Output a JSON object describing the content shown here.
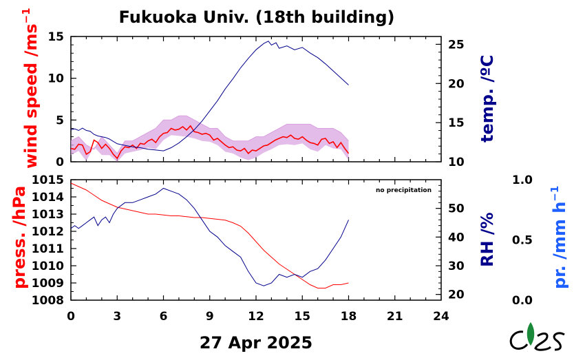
{
  "title": "Fukuoka Univ. (18th building)",
  "date_label": "27 Apr 2025",
  "note": "no precipitation",
  "colors": {
    "wind": "#ff0000",
    "wind_gust": "#d9a0e0",
    "temp": "#00008b",
    "press": "#ff0000",
    "rh": "#00008b",
    "precip": "#1e5fff",
    "logo": "#1a8a3a"
  },
  "chart_data": [
    {
      "type": "line",
      "panel": "top",
      "x_ticks": [
        0,
        3,
        6,
        9,
        12,
        15,
        18,
        21,
        24
      ],
      "xlim": [
        0,
        24
      ],
      "left_axis": {
        "label": "wind speed /ms",
        "unit_sup": "−1",
        "ylim": [
          0,
          15
        ],
        "ticks": [
          "0",
          "5",
          "10",
          "15"
        ]
      },
      "right_axis": {
        "label": "temp. /ºC",
        "ylim": [
          10,
          26
        ],
        "ticks": [
          "10",
          "15",
          "20",
          "25"
        ]
      },
      "series": [
        {
          "axis": "left",
          "style": "gust",
          "x": [
            0,
            0.5,
            1,
            1.5,
            2,
            2.5,
            3,
            3.5,
            4,
            4.5,
            5,
            5.5,
            6,
            6.5,
            7,
            7.5,
            8,
            8.5,
            9,
            9.5,
            10,
            10.5,
            11,
            11.5,
            12,
            12.5,
            13,
            13.5,
            14,
            14.5,
            15,
            15.5,
            16,
            16.5,
            17,
            17.5,
            18
          ],
          "y": [
            2.5,
            3,
            2,
            1.5,
            3,
            2,
            1,
            2.5,
            2.5,
            3,
            3.5,
            4,
            5,
            5,
            5.5,
            5.5,
            5,
            4.5,
            4,
            4,
            3,
            2.5,
            2.5,
            2.5,
            3,
            3,
            3.5,
            4,
            4.5,
            4.5,
            4.5,
            4.5,
            4,
            4,
            4,
            3.5,
            2.5
          ]
        },
        {
          "axis": "left",
          "style": "mean",
          "x": [
            0,
            0.25,
            0.5,
            0.75,
            1,
            1.25,
            1.5,
            1.75,
            2,
            2.25,
            2.5,
            2.75,
            3,
            3.25,
            3.5,
            3.75,
            4,
            4.25,
            4.5,
            4.75,
            5,
            5.25,
            5.5,
            5.75,
            6,
            6.25,
            6.5,
            6.75,
            7,
            7.25,
            7.5,
            7.75,
            8,
            8.25,
            8.5,
            8.75,
            9,
            9.25,
            9.5,
            9.75,
            10,
            10.25,
            10.5,
            10.75,
            11,
            11.25,
            11.5,
            11.75,
            12,
            12.25,
            12.5,
            12.75,
            13,
            13.25,
            13.5,
            13.75,
            14,
            14.25,
            14.5,
            14.75,
            15,
            15.25,
            15.5,
            15.75,
            16,
            16.25,
            16.5,
            16.75,
            17,
            17.25,
            17.5,
            17.75,
            18
          ],
          "y": [
            1.6,
            1.5,
            2.1,
            2,
            0.9,
            1.2,
            2.6,
            2.3,
            1.6,
            2.1,
            1.6,
            0.9,
            0.4,
            1.3,
            1.8,
            1.7,
            2.0,
            1.6,
            2.2,
            2.1,
            2.5,
            2.7,
            2.3,
            3.0,
            3.4,
            3.5,
            4.0,
            3.8,
            3.9,
            4.2,
            3.8,
            4.3,
            3.6,
            3.5,
            3.3,
            3.4,
            3.2,
            2.6,
            2.8,
            2.4,
            2.0,
            1.7,
            1.8,
            1.4,
            1.3,
            1.6,
            1.0,
            1.4,
            1.3,
            1.6,
            1.9,
            2.0,
            2.3,
            2.6,
            2.8,
            3.0,
            2.9,
            3.2,
            2.8,
            2.7,
            3.0,
            2.6,
            2.3,
            2.2,
            2.0,
            2.7,
            2.8,
            2.2,
            2.4,
            1.7,
            2.3,
            1.6,
            1.0
          ]
        },
        {
          "axis": "right",
          "style": "temp",
          "x": [
            0,
            0.25,
            0.5,
            0.75,
            1,
            1.25,
            1.5,
            1.75,
            2,
            2.25,
            2.5,
            2.75,
            3,
            3.25,
            3.5,
            3.75,
            4,
            4.5,
            5,
            5.5,
            6,
            6.5,
            7,
            7.5,
            8,
            8.5,
            9,
            9.5,
            10,
            10.5,
            11,
            11.5,
            12,
            12.5,
            12.8,
            13,
            13.3,
            13.5,
            14,
            14.5,
            15,
            15.5,
            16,
            16.5,
            17,
            17.5,
            18
          ],
          "y": [
            14.1,
            14.2,
            14.0,
            14.3,
            14.0,
            13.9,
            13.5,
            13.3,
            13.2,
            13.1,
            12.9,
            12.6,
            12.3,
            12.2,
            12.1,
            12.0,
            11.9,
            11.8,
            11.6,
            11.5,
            11.4,
            11.8,
            12.4,
            13.2,
            14.1,
            15.2,
            16.5,
            17.8,
            19.3,
            20.6,
            22.0,
            23.2,
            24.3,
            25.1,
            25.4,
            24.9,
            25.2,
            24.5,
            24.8,
            24.3,
            24.6,
            23.9,
            23.3,
            22.5,
            21.6,
            20.7,
            19.8
          ]
        }
      ]
    },
    {
      "type": "line",
      "panel": "bottom",
      "x_ticks": [
        "0",
        "3",
        "6",
        "9",
        "12",
        "15",
        "18",
        "21",
        "24"
      ],
      "xlim": [
        0,
        24
      ],
      "left_axis": {
        "label": "press. /hPa",
        "ylim": [
          1008,
          1015
        ],
        "ticks": [
          "1008",
          "1009",
          "1010",
          "1011",
          "1012",
          "1013",
          "1014",
          "1015"
        ]
      },
      "right_axis": {
        "label": "RH /%",
        "ylim": [
          18,
          60
        ],
        "ticks": [
          "20",
          "30",
          "40",
          "50"
        ]
      },
      "third_axis": {
        "label": "pr. /mm h",
        "unit_sup": "−1",
        "ylim": [
          0,
          1
        ],
        "ticks": [
          "0.0",
          "0.5",
          "1.0"
        ]
      },
      "series": [
        {
          "axis": "left",
          "style": "press",
          "x": [
            0,
            0.5,
            1,
            1.5,
            2,
            2.5,
            3,
            3.5,
            4,
            4.5,
            5,
            5.5,
            6,
            6.5,
            7,
            7.5,
            8,
            8.5,
            9,
            9.5,
            10,
            10.5,
            11,
            11.5,
            12,
            12.5,
            13,
            13.5,
            14,
            14.5,
            15,
            15.5,
            16,
            16.5,
            17,
            17.5,
            18
          ],
          "y": [
            1014.8,
            1014.6,
            1014.4,
            1014.1,
            1013.8,
            1013.6,
            1013.4,
            1013.3,
            1013.2,
            1013.1,
            1013.0,
            1013.0,
            1012.95,
            1012.9,
            1012.9,
            1012.85,
            1012.8,
            1012.8,
            1012.75,
            1012.7,
            1012.65,
            1012.5,
            1012.3,
            1011.9,
            1011.4,
            1010.9,
            1010.5,
            1010.1,
            1009.8,
            1009.5,
            1009.2,
            1008.9,
            1008.7,
            1008.7,
            1008.9,
            1008.9,
            1009.0
          ]
        },
        {
          "axis": "right",
          "style": "rh",
          "x": [
            0,
            0.25,
            0.5,
            0.75,
            1,
            1.25,
            1.5,
            1.75,
            2,
            2.25,
            2.5,
            2.75,
            3,
            3.5,
            4,
            4.5,
            5,
            5.5,
            6,
            6.5,
            7,
            7.5,
            8,
            8.5,
            9,
            9.5,
            10,
            10.5,
            11,
            11.5,
            12,
            12.5,
            13,
            13.5,
            14,
            14.5,
            15,
            15.5,
            16,
            16.5,
            17,
            17.5,
            18
          ],
          "y": [
            43,
            44,
            43,
            44,
            45,
            46,
            47,
            44,
            46,
            47,
            45,
            48,
            50,
            52,
            52,
            53,
            54,
            55,
            57,
            56,
            55,
            53,
            50,
            46,
            42,
            40,
            37,
            35,
            33,
            28,
            24,
            23,
            24,
            27,
            26,
            27,
            26,
            28,
            29,
            32,
            36,
            40,
            46
          ]
        },
        {
          "axis": "third",
          "style": "precip",
          "x": [],
          "y": []
        }
      ]
    }
  ]
}
